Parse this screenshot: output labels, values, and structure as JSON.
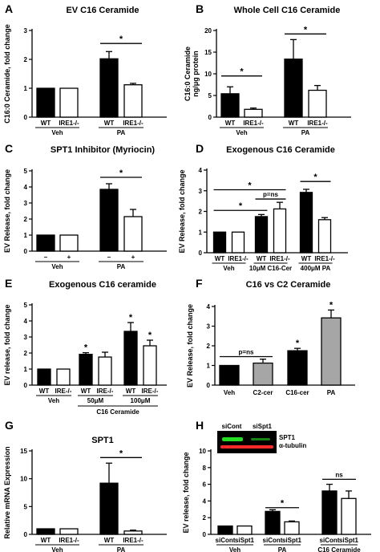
{
  "chart_data": [
    {
      "id": "A",
      "panel_label": "A",
      "type": "bar",
      "title": "EV C16 Ceramide",
      "ylabel": "C16:0 Ceramide, fold change",
      "ylim": [
        0,
        3
      ],
      "yticks": [
        0,
        1,
        2,
        3
      ],
      "bars": [
        {
          "value": 1.0,
          "error": 0.0,
          "fill": "#000000"
        },
        {
          "value": 1.0,
          "error": 0.0,
          "fill": "#ffffff"
        },
        {
          "value": 2.02,
          "error": 0.25,
          "fill": "#000000"
        },
        {
          "value": 1.12,
          "error": 0.05,
          "fill": "#ffffff"
        }
      ],
      "bar_labels": [
        "WT",
        "IRE1-/-",
        "WT",
        "IRE1-/-"
      ],
      "groups": [
        {
          "label": "Veh",
          "bars": [
            0,
            1
          ]
        },
        {
          "label": "PA",
          "bars": [
            2,
            3
          ]
        }
      ],
      "sig": [
        {
          "from": 2,
          "to": 3,
          "level": 2.55,
          "text": "*"
        }
      ]
    },
    {
      "id": "B",
      "panel_label": "B",
      "type": "bar",
      "title": "Whole Cell C16 Ceramide",
      "ylabel": "C16:0 Ceramide\nng/μg protein",
      "ylim": [
        0,
        20
      ],
      "yticks": [
        0,
        5,
        10,
        15,
        20
      ],
      "bars": [
        {
          "value": 5.4,
          "error": 1.6,
          "fill": "#000000"
        },
        {
          "value": 1.8,
          "error": 0.3,
          "fill": "#ffffff"
        },
        {
          "value": 13.4,
          "error": 4.5,
          "fill": "#000000"
        },
        {
          "value": 6.2,
          "error": 1.1,
          "fill": "#ffffff"
        }
      ],
      "bar_labels": [
        "WT",
        "IRE1-/-",
        "WT",
        "IRE1-/-"
      ],
      "groups": [
        {
          "label": "Veh",
          "bars": [
            0,
            1
          ]
        },
        {
          "label": "PA",
          "bars": [
            2,
            3
          ]
        }
      ],
      "sig": [
        {
          "from": 0,
          "to": 1,
          "level": 9.5,
          "text": "*"
        },
        {
          "from": 2,
          "to": 3,
          "level": 19.2,
          "text": "*"
        }
      ]
    },
    {
      "id": "C",
      "panel_label": "C",
      "type": "bar",
      "title": "SPT1 Inhibitor (Myriocin)",
      "ylabel": "EV Release, fold change",
      "ylim": [
        0,
        5
      ],
      "yticks": [
        0,
        1,
        2,
        3,
        4,
        5
      ],
      "bars": [
        {
          "value": 1.0,
          "error": 0.0,
          "fill": "#000000"
        },
        {
          "value": 1.0,
          "error": 0.0,
          "fill": "#ffffff"
        },
        {
          "value": 3.85,
          "error": 0.35,
          "fill": "#000000"
        },
        {
          "value": 2.15,
          "error": 0.45,
          "fill": "#ffffff"
        }
      ],
      "bar_labels": [
        "–",
        "+",
        "–",
        "+"
      ],
      "groups": [
        {
          "label": "Veh",
          "bars": [
            0,
            1
          ]
        },
        {
          "label": "PA",
          "bars": [
            2,
            3
          ]
        }
      ],
      "sig": [
        {
          "from": 2,
          "to": 3,
          "level": 4.6,
          "text": "*"
        }
      ]
    },
    {
      "id": "D",
      "panel_label": "D",
      "type": "bar",
      "title": "Exogenous C16 Ceramide",
      "ylabel": "EV Release, fold change",
      "ylim": [
        0,
        4
      ],
      "yticks": [
        0,
        1,
        2,
        3,
        4
      ],
      "bars": [
        {
          "value": 1.0,
          "error": 0.0,
          "fill": "#000000"
        },
        {
          "value": 1.0,
          "error": 0.0,
          "fill": "#ffffff"
        },
        {
          "value": 1.75,
          "error": 0.1,
          "fill": "#000000"
        },
        {
          "value": 2.12,
          "error": 0.32,
          "fill": "#ffffff"
        },
        {
          "value": 2.92,
          "error": 0.15,
          "fill": "#000000"
        },
        {
          "value": 1.6,
          "error": 0.1,
          "fill": "#ffffff"
        }
      ],
      "bar_labels": [
        "WT",
        "IRE1-/-",
        "WT",
        "IRE1-/-",
        "WT",
        "IRE1-/-"
      ],
      "groups": [
        {
          "label": "Veh",
          "bars": [
            0,
            1
          ]
        },
        {
          "label": "10μM C16-Cer",
          "bars": [
            2,
            3
          ]
        },
        {
          "label": "400μM PA",
          "bars": [
            4,
            5
          ]
        }
      ],
      "sig": [
        {
          "from": 0,
          "to": 2,
          "level": 2.05,
          "text": "*"
        },
        {
          "from": 2,
          "to": 3,
          "level": 2.6,
          "text": "p=ns"
        },
        {
          "from": 0,
          "to": 3,
          "level": 3.05,
          "text": "*"
        },
        {
          "from": 4,
          "to": 5,
          "level": 3.45,
          "text": "*"
        }
      ]
    },
    {
      "id": "E",
      "panel_label": "E",
      "type": "bar",
      "title": "Exogenous C16 ceramide",
      "ylabel": "EV release, fold change",
      "ylim": [
        0,
        5
      ],
      "yticks": [
        0,
        1,
        2,
        3,
        4,
        5
      ],
      "bars": [
        {
          "value": 1.0,
          "error": 0.0,
          "fill": "#000000"
        },
        {
          "value": 1.0,
          "error": 0.0,
          "fill": "#ffffff"
        },
        {
          "value": 1.92,
          "error": 0.1,
          "fill": "#000000"
        },
        {
          "value": 1.75,
          "error": 0.3,
          "fill": "#ffffff"
        },
        {
          "value": 3.35,
          "error": 0.55,
          "fill": "#000000"
        },
        {
          "value": 2.45,
          "error": 0.35,
          "fill": "#ffffff"
        }
      ],
      "bar_labels": [
        "WT",
        "IRE-/-",
        "WT",
        "IRE-/-",
        "WT",
        "IRE-/-"
      ],
      "bar_stars": [
        null,
        null,
        "*",
        null,
        "*",
        "*"
      ],
      "groups": [
        {
          "label": "Veh",
          "bars": [
            0,
            1
          ]
        },
        {
          "label": "50μM",
          "bars": [
            2,
            3
          ]
        },
        {
          "label": "100μM",
          "bars": [
            4,
            5
          ]
        }
      ],
      "bracket": {
        "label": "C16 Ceramide",
        "bars": [
          2,
          5
        ]
      }
    },
    {
      "id": "F",
      "panel_label": "F",
      "type": "bar",
      "title": "C16 vs C2 Ceramide",
      "ylabel": "EV Release, fold change",
      "ylim": [
        0,
        4
      ],
      "yticks": [
        0,
        1,
        2,
        3,
        4
      ],
      "bars": [
        {
          "value": 1.0,
          "error": 0.0,
          "fill": "#000000"
        },
        {
          "value": 1.12,
          "error": 0.2,
          "fill": "#a6a6a6"
        },
        {
          "value": 1.75,
          "error": 0.12,
          "fill": "#000000"
        },
        {
          "value": 3.42,
          "error": 0.4,
          "fill": "#a6a6a6"
        }
      ],
      "bar_labels": [],
      "groups": [
        {
          "label": "Veh",
          "bars": [
            0
          ]
        },
        {
          "label": "C2-cer",
          "bars": [
            1
          ]
        },
        {
          "label": "C16-cer",
          "bars": [
            2
          ]
        },
        {
          "label": "PA",
          "bars": [
            3
          ]
        }
      ],
      "bar_stars": [
        null,
        null,
        "*",
        "*"
      ],
      "sig": [
        {
          "from": 0,
          "to": 1,
          "level": 1.45,
          "text": "p=ns"
        }
      ]
    },
    {
      "id": "G",
      "panel_label": "G",
      "type": "bar",
      "title": "SPT1",
      "ylabel": "Relative mRNA Expression",
      "ylim": [
        0,
        15
      ],
      "yticks": [
        0,
        5,
        10,
        15
      ],
      "bars": [
        {
          "value": 1.0,
          "error": 0.0,
          "fill": "#000000"
        },
        {
          "value": 1.0,
          "error": 0.0,
          "fill": "#ffffff"
        },
        {
          "value": 9.2,
          "error": 3.6,
          "fill": "#000000"
        },
        {
          "value": 0.6,
          "error": 0.15,
          "fill": "#ffffff"
        }
      ],
      "bar_labels": [
        "WT",
        "IRE1-/-",
        "WT",
        "IRE1-/-"
      ],
      "groups": [
        {
          "label": "Veh",
          "bars": [
            0,
            1
          ]
        },
        {
          "label": "PA",
          "bars": [
            2,
            3
          ]
        }
      ],
      "sig": [
        {
          "from": 2,
          "to": 3,
          "level": 13.8,
          "text": "*"
        }
      ]
    },
    {
      "id": "H",
      "panel_label": "H",
      "type": "bar",
      "title": "",
      "ylabel": "EV release, fold change",
      "ylim": [
        0,
        10
      ],
      "yticks": [
        0,
        2,
        4,
        6,
        8,
        10
      ],
      "bars": [
        {
          "value": 1.0,
          "error": 0.0,
          "fill": "#000000"
        },
        {
          "value": 1.0,
          "error": 0.0,
          "fill": "#ffffff"
        },
        {
          "value": 2.75,
          "error": 0.2,
          "fill": "#000000"
        },
        {
          "value": 1.5,
          "error": 0.1,
          "fill": "#ffffff"
        },
        {
          "value": 5.2,
          "error": 0.8,
          "fill": "#000000"
        },
        {
          "value": 4.3,
          "error": 0.9,
          "fill": "#ffffff"
        }
      ],
      "bar_labels": [
        "siCont",
        "siSpt1",
        "siCont",
        "siSpt1",
        "siCont",
        "siSpt1"
      ],
      "groups": [
        {
          "label": "Veh",
          "bars": [
            0,
            1
          ]
        },
        {
          "label": "PA",
          "bars": [
            2,
            3
          ]
        },
        {
          "label": "C16 Ceramide",
          "bars": [
            4,
            5
          ]
        }
      ],
      "sig": [
        {
          "from": 2,
          "to": 3,
          "level": 3.2,
          "text": "*"
        },
        {
          "from": 4,
          "to": 5,
          "level": 6.6,
          "text": "ns"
        }
      ],
      "blot": {
        "lanes": [
          "siCont",
          "siSpt1"
        ],
        "rows": [
          {
            "label": "SPT1",
            "color": "#22dd22"
          },
          {
            "label": "α-tubulin",
            "color": "#ff2a2a"
          }
        ]
      }
    }
  ]
}
